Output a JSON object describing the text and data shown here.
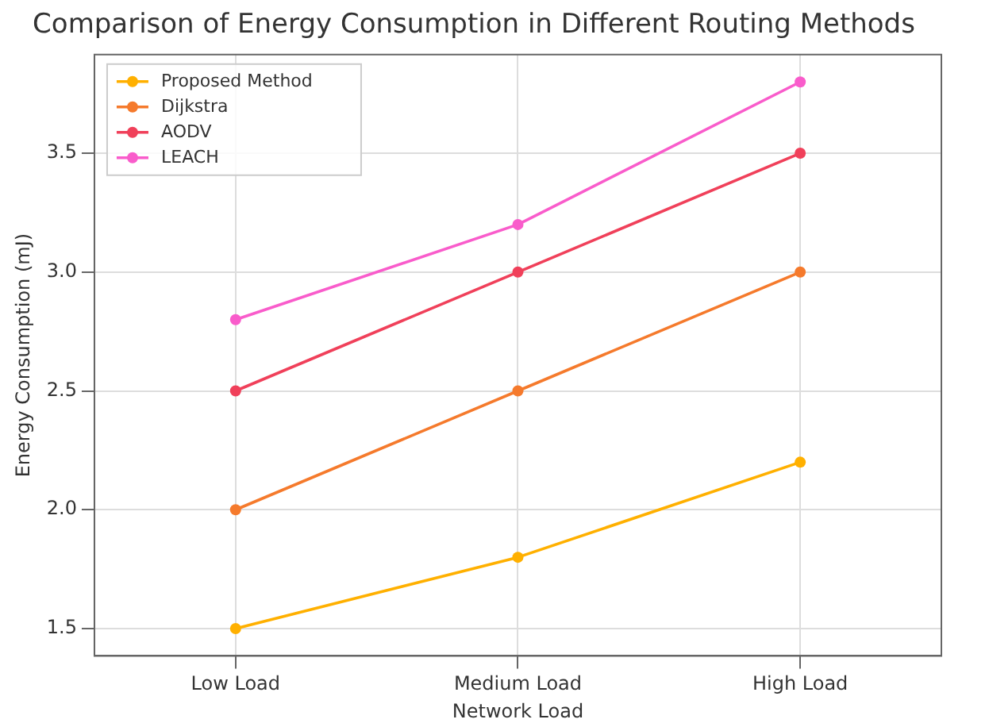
{
  "chart_data": {
    "type": "line",
    "title": "Comparison of Energy Consumption in Different Routing Methods",
    "xlabel": "Network Load",
    "ylabel": "Energy Consumption (mJ)",
    "categories": [
      "Low Load",
      "Medium Load",
      "High Load"
    ],
    "series": [
      {
        "name": "Proposed Method",
        "color": "#ffb000",
        "values": [
          1.5,
          1.8,
          2.2
        ]
      },
      {
        "name": "Dijkstra",
        "color": "#f57a2c",
        "values": [
          2.0,
          2.5,
          3.0
        ]
      },
      {
        "name": "AODV",
        "color": "#f0405a",
        "values": [
          2.5,
          3.0,
          3.5
        ]
      },
      {
        "name": "LEACH",
        "color": "#f95ccb",
        "values": [
          2.8,
          3.2,
          3.8
        ]
      }
    ],
    "ylim": [
      1.385,
      3.915
    ],
    "yticks": [
      1.5,
      {
        "value": 2,
        "label": "2.0"
      },
      2.5,
      {
        "value": 3,
        "label": "3.0"
      },
      3.5
    ],
    "grid": true,
    "legend": "top left",
    "marker": "circle",
    "line_style": "solid"
  }
}
